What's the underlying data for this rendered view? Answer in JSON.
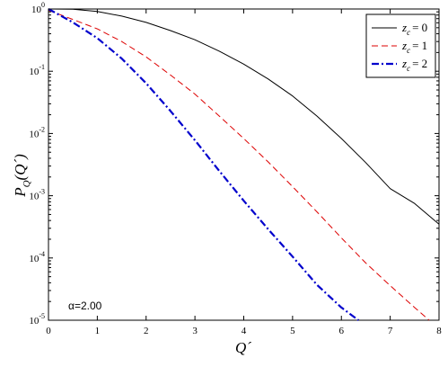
{
  "chart_data": {
    "type": "line",
    "title": "",
    "xlabel": "Q´",
    "ylabel": {
      "main": "P",
      "sub": "Q",
      "arg": "(Q´)"
    },
    "xlim": [
      0,
      8
    ],
    "ylim_log10": [
      -5,
      0
    ],
    "y_scale": "log",
    "grid": false,
    "legend_position": "top-right",
    "x_ticks": [
      "0",
      "1",
      "2",
      "3",
      "4",
      "5",
      "6",
      "7",
      "8"
    ],
    "y_ticks": [
      {
        "base": "10",
        "exp": "0"
      },
      {
        "base": "10",
        "exp": "-1"
      },
      {
        "base": "10",
        "exp": "-2"
      },
      {
        "base": "10",
        "exp": "-3"
      },
      {
        "base": "10",
        "exp": "-4"
      },
      {
        "base": "10",
        "exp": "-5"
      }
    ],
    "annotation": "α=2.00",
    "series": [
      {
        "var": "z",
        "sub": "c",
        "value": "= 0",
        "color": "#000000",
        "style": "solid",
        "x": [
          0,
          0.5,
          1,
          1.5,
          2,
          2.5,
          3,
          3.5,
          4,
          4.5,
          5,
          5.5,
          6,
          6.5,
          7,
          7.5,
          8
        ],
        "y": [
          1.0,
          0.99,
          0.91,
          0.77,
          0.61,
          0.45,
          0.32,
          0.21,
          0.13,
          0.075,
          0.04,
          0.019,
          0.0083,
          0.0034,
          0.0013,
          0.00075,
          0.00035
        ]
      },
      {
        "var": "z",
        "sub": "c",
        "value": "= 1",
        "color": "#dd0000",
        "style": "dashed",
        "x": [
          0,
          0.5,
          1,
          1.5,
          2,
          2.5,
          3,
          3.5,
          4,
          4.5,
          5,
          5.5,
          6,
          6.5,
          7,
          7.5,
          7.8
        ],
        "y": [
          0.95,
          0.68,
          0.48,
          0.3,
          0.17,
          0.087,
          0.043,
          0.019,
          0.0083,
          0.0035,
          0.0014,
          0.00055,
          0.00021,
          8.3e-05,
          3.6e-05,
          1.6e-05,
          1e-05
        ]
      },
      {
        "var": "z",
        "sub": "c",
        "value": "= 2",
        "color": "#0000cc",
        "style": "dashdot",
        "x": [
          0,
          0.5,
          1,
          1.5,
          2,
          2.5,
          3,
          3.5,
          4,
          4.5,
          5,
          5.5,
          6,
          6.35
        ],
        "y": [
          1.0,
          0.61,
          0.34,
          0.16,
          0.064,
          0.023,
          0.0078,
          0.0025,
          0.00083,
          0.00029,
          0.000105,
          3.7e-05,
          1.6e-05,
          1e-05
        ]
      }
    ]
  }
}
